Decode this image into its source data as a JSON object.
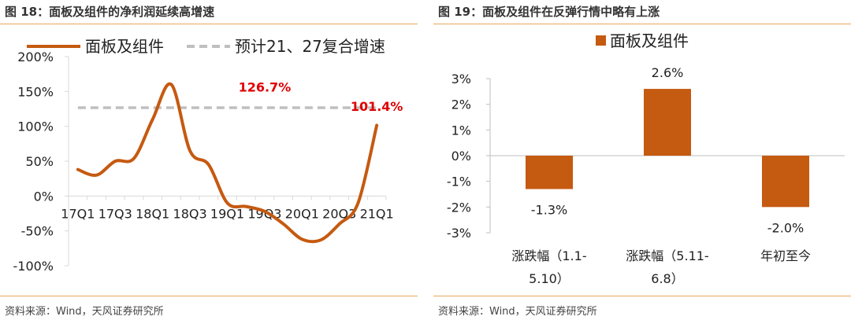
{
  "left": {
    "figure_title": "图 18：面板及组件的净利润延续高增速",
    "source": "资料来源：Wind，天风证券研究所"
  },
  "right": {
    "figure_title": "图 19：面板及组件在反弹行情中略有上涨",
    "source": "资料来源：Wind，天风证券研究所"
  },
  "chart_data": [
    {
      "type": "line",
      "title": "",
      "x": [
        "17Q1",
        "17Q2",
        "17Q3",
        "17Q4",
        "18Q1",
        "18Q2",
        "18Q3",
        "18Q4",
        "19Q1",
        "19Q2",
        "19Q3",
        "19Q4",
        "20Q1",
        "20Q2",
        "20Q3",
        "20Q4",
        "21Q1"
      ],
      "x_tick_labels": [
        "17Q1",
        "17Q3",
        "18Q1",
        "18Q3",
        "19Q1",
        "19Q3",
        "20Q1",
        "20Q3",
        "21Q1"
      ],
      "series": [
        {
          "name": "面板及组件",
          "color": "#c55a11",
          "style": "solid",
          "values": [
            38,
            30,
            50,
            54,
            110,
            160,
            65,
            45,
            -10,
            -15,
            -22,
            -40,
            -62,
            -63,
            -40,
            -10,
            101.4
          ]
        },
        {
          "name": "预计21、27复合增速",
          "color": "#bfbfbf",
          "style": "dashed",
          "values": [
            126.7,
            126.7,
            126.7,
            126.7,
            126.7,
            126.7,
            126.7,
            126.7,
            126.7,
            126.7,
            126.7,
            126.7,
            126.7,
            126.7,
            126.7,
            126.7,
            126.7
          ]
        }
      ],
      "ylim": [
        -100,
        200
      ],
      "y_ticks": [
        -100,
        -50,
        0,
        50,
        100,
        150,
        200
      ],
      "y_tick_labels": [
        "-100%",
        "-50%",
        "0%",
        "50%",
        "100%",
        "150%",
        "200%"
      ],
      "annotations": [
        {
          "text": "126.7%",
          "color": "#e00000",
          "x": "19Q3",
          "y": 150
        },
        {
          "text": "101.4%",
          "color": "#e00000",
          "x": "21Q1",
          "y": 122
        }
      ],
      "legend_position": "top"
    },
    {
      "type": "bar",
      "title": "",
      "categories": [
        {
          "line1": "涨跌幅（1.1-",
          "line2": "5.10）"
        },
        {
          "line1": "涨跌幅（5.11-",
          "line2": "6.8）"
        },
        {
          "line1": "年初至今",
          "line2": ""
        }
      ],
      "series": [
        {
          "name": "面板及组件",
          "color": "#c55a11",
          "values": [
            -1.3,
            2.6,
            -2.0
          ]
        }
      ],
      "data_labels": [
        "-1.3%",
        "2.6%",
        "-2.0%"
      ],
      "ylim": [
        -3,
        3
      ],
      "y_ticks": [
        -3,
        -2,
        -1,
        0,
        1,
        2,
        3
      ],
      "y_tick_labels": [
        "-3%",
        "-2%",
        "-1%",
        "0%",
        "1%",
        "2%",
        "3%"
      ],
      "legend_position": "top"
    }
  ]
}
